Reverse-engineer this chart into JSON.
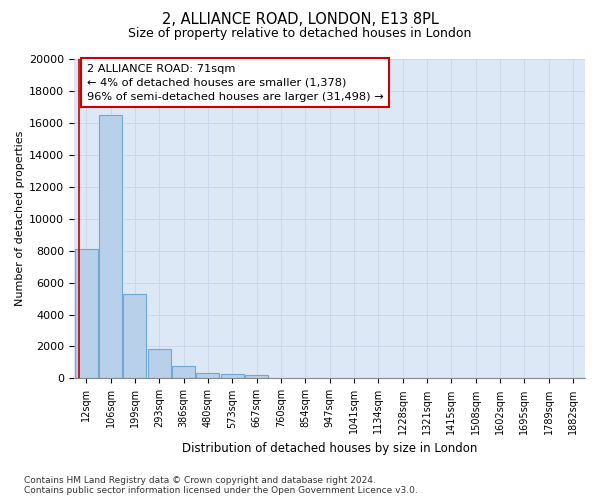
{
  "title_line1": "2, ALLIANCE ROAD, LONDON, E13 8PL",
  "title_line2": "Size of property relative to detached houses in London",
  "xlabel": "Distribution of detached houses by size in London",
  "ylabel": "Number of detached properties",
  "footnote": "Contains HM Land Registry data © Crown copyright and database right 2024.\nContains public sector information licensed under the Open Government Licence v3.0.",
  "bar_labels": [
    "12sqm",
    "106sqm",
    "199sqm",
    "293sqm",
    "386sqm",
    "480sqm",
    "573sqm",
    "667sqm",
    "760sqm",
    "854sqm",
    "947sqm",
    "1041sqm",
    "1134sqm",
    "1228sqm",
    "1321sqm",
    "1415sqm",
    "1508sqm",
    "1602sqm",
    "1695sqm",
    "1789sqm",
    "1882sqm"
  ],
  "bar_values": [
    8100,
    16500,
    5300,
    1850,
    800,
    350,
    270,
    220,
    0,
    0,
    0,
    0,
    0,
    0,
    0,
    0,
    0,
    0,
    0,
    0,
    0
  ],
  "bar_color": "#b8d0ea",
  "bar_edgecolor": "#6aaad4",
  "ylim": [
    0,
    20000
  ],
  "yticks": [
    0,
    2000,
    4000,
    6000,
    8000,
    10000,
    12000,
    14000,
    16000,
    18000,
    20000
  ],
  "annotation_text": "2 ALLIANCE ROAD: 71sqm\n← 4% of detached houses are smaller (1,378)\n96% of semi-detached houses are larger (31,498) →",
  "vline_color": "#cc0000",
  "grid_color": "#c8d4e8",
  "background_color": "#dce8f5"
}
